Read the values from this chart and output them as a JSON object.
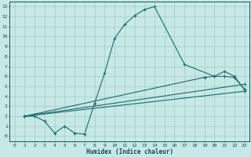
{
  "xlabel": "Humidex (Indice chaleur)",
  "ylabel": "",
  "xlim": [
    -0.5,
    23.5
  ],
  "ylim": [
    -0.5,
    13.5
  ],
  "xticks": [
    0,
    1,
    2,
    3,
    4,
    5,
    6,
    7,
    8,
    9,
    10,
    11,
    12,
    13,
    14,
    15,
    16,
    17,
    18,
    19,
    20,
    21,
    22,
    23
  ],
  "yticks": [
    0,
    1,
    2,
    3,
    4,
    5,
    6,
    7,
    8,
    9,
    10,
    11,
    12,
    13
  ],
  "bg_color": "#c6e8e6",
  "grid_color": "#a8d0ce",
  "line_color": "#1a6b6b",
  "line1_x": [
    1,
    2,
    3,
    4,
    5,
    6,
    7,
    8,
    9,
    10,
    11,
    12,
    13,
    14,
    17,
    20,
    21,
    22,
    23
  ],
  "line1_y": [
    2,
    2,
    1.5,
    0.3,
    1.0,
    0.3,
    0.2,
    3.3,
    6.3,
    9.8,
    11.2,
    12.1,
    12.7,
    13,
    7.2,
    6.0,
    6.0,
    5.9,
    4.7
  ],
  "line2_x": [
    1,
    19,
    20,
    21,
    22,
    23
  ],
  "line2_y": [
    2,
    5.9,
    6.0,
    6.5,
    6.0,
    4.7
  ],
  "line3_x": [
    1,
    23
  ],
  "line3_y": [
    2,
    5.2
  ],
  "line4_x": [
    1,
    23
  ],
  "line4_y": [
    2,
    4.5
  ],
  "marker": "+"
}
